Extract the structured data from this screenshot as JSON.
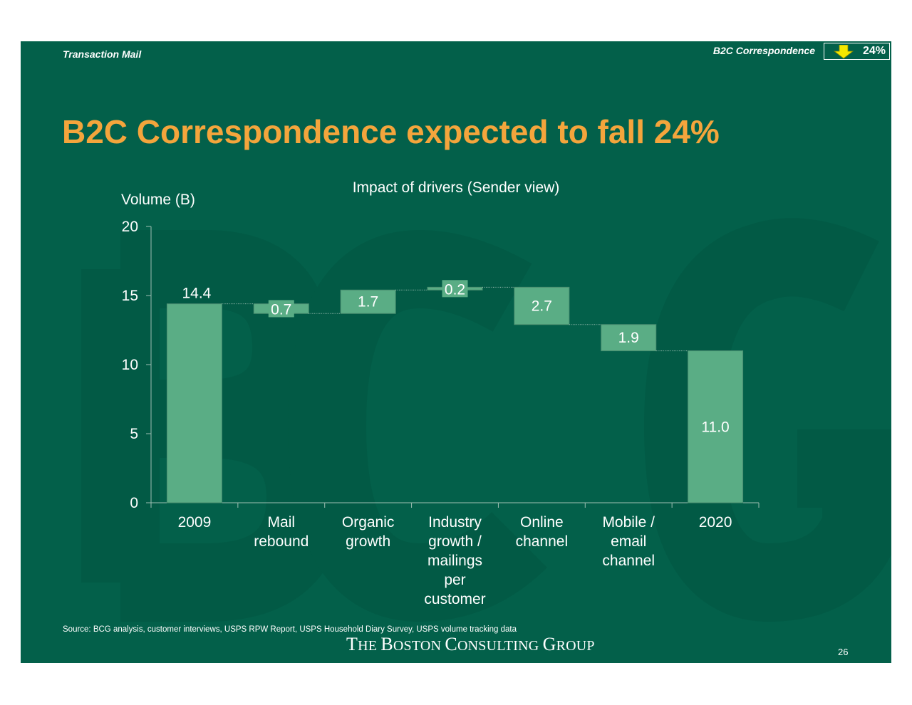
{
  "header": {
    "section_left": "Transaction Mail",
    "section_right": "B2C Correspondence",
    "badge_value": "24%",
    "badge_icon": "down-arrow-icon",
    "badge_icon_color": "#f5e800"
  },
  "title": "B2C Correspondence expected to fall 24%",
  "colors": {
    "background": "#03604a",
    "title": "#f4a53c",
    "bar": "#5aad85",
    "text": "#ffffff"
  },
  "chart_data": {
    "type": "bar",
    "subtype": "waterfall",
    "title": "Impact of drivers (Sender view)",
    "ylabel": "Volume (B)",
    "xlabel": "",
    "ylim": [
      0,
      20
    ],
    "yticks": [
      "0",
      "5",
      "10",
      "15",
      "20"
    ],
    "categories": [
      [
        "2009"
      ],
      [
        "Mail",
        "rebound"
      ],
      [
        "Organic",
        "growth"
      ],
      [
        "Industry",
        "growth /",
        "mailings",
        "per",
        "customer"
      ],
      [
        "Online",
        "channel"
      ],
      [
        "Mobile /",
        "email",
        "channel"
      ],
      [
        "2020"
      ]
    ],
    "bars": [
      {
        "kind": "total",
        "start": 0,
        "end": 14.4,
        "label": "14.4"
      },
      {
        "kind": "delta",
        "start": 14.4,
        "end": 13.7,
        "label": "0.7"
      },
      {
        "kind": "delta",
        "start": 13.7,
        "end": 15.4,
        "label": "1.7"
      },
      {
        "kind": "delta",
        "start": 15.4,
        "end": 15.6,
        "label": "0.2"
      },
      {
        "kind": "delta",
        "start": 15.6,
        "end": 12.9,
        "label": "2.7"
      },
      {
        "kind": "delta",
        "start": 12.9,
        "end": 11.0,
        "label": "1.9"
      },
      {
        "kind": "total",
        "start": 0,
        "end": 11.0,
        "label": "11.0"
      }
    ],
    "grid": false,
    "legend": "none"
  },
  "footer": {
    "source": "Source: BCG analysis, customer interviews, USPS RPW Report, USPS Household Diary Survey, USPS volume tracking data",
    "brand_parts": [
      {
        "text": "T",
        "size": "cap"
      },
      {
        "text": "HE ",
        "size": "sm"
      },
      {
        "text": "B",
        "size": "cap"
      },
      {
        "text": "OSTON ",
        "size": "sm"
      },
      {
        "text": "C",
        "size": "cap"
      },
      {
        "text": "ONSULTING ",
        "size": "sm"
      },
      {
        "text": "G",
        "size": "cap"
      },
      {
        "text": "ROUP",
        "size": "sm"
      }
    ],
    "page_number": "26"
  }
}
